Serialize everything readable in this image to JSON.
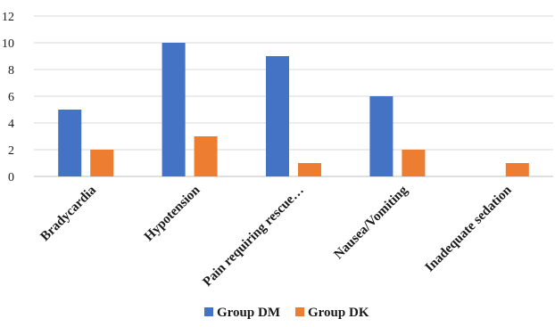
{
  "chart_data": {
    "type": "bar",
    "title": "",
    "xlabel": "",
    "ylabel": "",
    "categories": [
      "Bradycardia",
      "Hypotension",
      "Pain requiring rescue…",
      "Nausea/Vomiting",
      "Inadequate sedation"
    ],
    "series": [
      {
        "name": "Group DM",
        "color": "#4472c4",
        "values": [
          5,
          10,
          9,
          6,
          0
        ]
      },
      {
        "name": "Group DK",
        "color": "#ed7d31",
        "values": [
          2,
          3,
          1,
          2,
          1
        ]
      }
    ],
    "ylim": [
      0,
      12
    ],
    "yticks": [
      0,
      2,
      4,
      6,
      8,
      10,
      12
    ],
    "grid": true,
    "legend_position": "bottom-center"
  }
}
